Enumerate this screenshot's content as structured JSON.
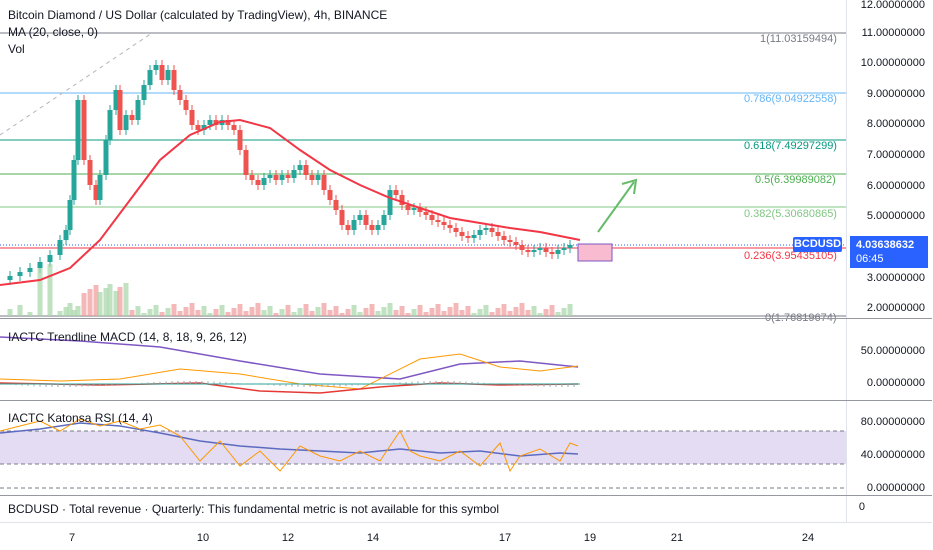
{
  "main": {
    "title": "Bitcoin Diamond / US Dollar (calculated by TradingView), 4h, BINANCE",
    "ma_label": "MA (20, close, 0)",
    "vol_label": "Vol",
    "symbol_tag": "BCDUSD",
    "last_price": "4.03638632",
    "countdown": "06:45",
    "price_axis": [
      "12.00000000",
      "11.00000000",
      "10.00000000",
      "9.00000000",
      "8.00000000",
      "7.00000000",
      "6.00000000",
      "5.00000000",
      "3.00000000",
      "2.00000000"
    ],
    "fib": {
      "top": "1(11.03159494)",
      "l786": "0.786(9.04922558)",
      "l618": "0.618(7.49297299)",
      "l5": "0.5(6.39989082)",
      "l382": "0.382(5.30680865)",
      "l236": "0.236(3.95435105)",
      "l0": "0(1.76819674)"
    },
    "colors": {
      "ma": "#f23645",
      "fib_top": "#787b86",
      "fib_786": "#64b5f6",
      "fib_618": "#089981",
      "fib_5": "#4caf50",
      "fib_382": "#81c784",
      "fib_236": "#f23645",
      "up": "#26a69a",
      "down": "#ef5350",
      "arrow": "#66bb6a"
    }
  },
  "macd": {
    "title": "IACTC Trendline MACD (14, 8, 18, 9, 26, 12)",
    "axis": [
      "50.00000000",
      "0.00000000"
    ]
  },
  "rsi": {
    "title": "IACTC Katonsa RSI (14, 4)",
    "axis": [
      "80.00000000",
      "40.00000000",
      "0.00000000"
    ]
  },
  "revenue": {
    "text": "BCDUSD · Total revenue · Quarterly: This fundamental metric is not available for this symbol",
    "axis": "0"
  },
  "time_axis": [
    "7",
    "10",
    "12",
    "14",
    "17",
    "19",
    "21",
    "24"
  ]
}
